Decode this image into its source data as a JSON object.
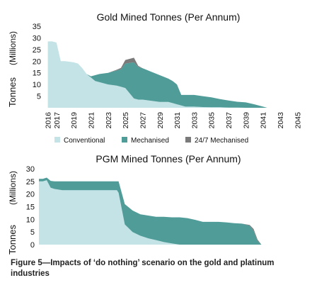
{
  "chart_data": [
    {
      "type": "area",
      "title": "Gold Mined Tonnes (Per Annum)",
      "ylabel": "Tonnes",
      "ylabel_unit": "(Millions)",
      "x": [
        2016,
        2016.5,
        2017,
        2017.5,
        2018,
        2019,
        2019.5,
        2020,
        2020.5,
        2021,
        2021.5,
        2022,
        2023,
        2024,
        2024.5,
        2025,
        2026,
        2026.5,
        2027,
        2028,
        2029,
        2030,
        2030.5,
        2031,
        2031.5,
        2032,
        2033,
        2034,
        2035,
        2036,
        2037,
        2038,
        2039,
        2040,
        2041,
        2041.5
      ],
      "ylim": [
        0,
        35
      ],
      "yticks": [
        5,
        10,
        15,
        20,
        25,
        30,
        35
      ],
      "xticks": [
        2016,
        2017,
        2019,
        2021,
        2023,
        2025,
        2027,
        2029,
        2031,
        2033,
        2035,
        2037,
        2039,
        2041,
        2043,
        2045
      ],
      "series": [
        {
          "name": "Conventional",
          "color": "#c3e3e6",
          "values": [
            28.5,
            28.5,
            28.0,
            20.0,
            20.0,
            19.5,
            19.0,
            17.0,
            14.5,
            13.0,
            11.5,
            11.0,
            10.0,
            9.5,
            9.0,
            8.5,
            4.0,
            3.5,
            3.5,
            3.0,
            2.5,
            2.5,
            2.0,
            1.5,
            1.0,
            0.5,
            0.5,
            0.3,
            0.2,
            0.2,
            0.1,
            0.1,
            0,
            0,
            0,
            0
          ]
        },
        {
          "name": "Mechanised",
          "color": "#4f9c98",
          "values": [
            0,
            0,
            0,
            0,
            0,
            0,
            0,
            0,
            0,
            0.5,
            2.5,
            3.5,
            5.0,
            6.5,
            7.5,
            10.5,
            15.5,
            14.0,
            13.5,
            12.5,
            11.5,
            10.0,
            9.5,
            8.5,
            4.5,
            5.0,
            5.0,
            4.7,
            4.3,
            3.5,
            3.0,
            2.5,
            2.3,
            1.5,
            0.5,
            0
          ]
        },
        {
          "name": "24/7 Mechanised",
          "color": "#7a7a7a",
          "values": [
            0,
            0,
            0,
            0,
            0,
            0,
            0,
            0,
            0,
            0,
            0,
            0,
            0,
            0.3,
            0.6,
            1.5,
            2.0,
            0.5,
            0,
            0,
            0,
            0,
            0,
            0,
            0,
            0,
            0,
            0,
            0,
            0,
            0,
            0,
            0,
            0,
            0,
            0
          ]
        }
      ]
    },
    {
      "type": "area",
      "title": "PGM Mined Tonnes (Per Annum)",
      "ylabel": "Tonnes",
      "ylabel_unit": "(Millions)",
      "x": [
        2016,
        2016.5,
        2017,
        2017.5,
        2018,
        2019,
        2020,
        2021,
        2022,
        2023,
        2024,
        2025,
        2026,
        2026.2,
        2027,
        2028,
        2029,
        2030,
        2031,
        2032,
        2033,
        2034,
        2035,
        2036,
        2037,
        2038,
        2039,
        2040,
        2041,
        2042,
        2043,
        2043.5,
        2044,
        2044.5
      ],
      "ylim": [
        0,
        30
      ],
      "yticks": [
        0,
        5,
        10,
        15,
        20,
        25,
        30
      ],
      "series": [
        {
          "name": "Conventional",
          "color": "#c3e3e6",
          "values": [
            25.0,
            25.0,
            25.5,
            22.5,
            22.0,
            21.5,
            21.5,
            21.5,
            21.5,
            21.5,
            21.5,
            21.5,
            21.5,
            20.5,
            8.0,
            5.0,
            3.5,
            2.5,
            1.8,
            1.0,
            0.5,
            0,
            0,
            0,
            0,
            0,
            0,
            0,
            0,
            0,
            0,
            0,
            0,
            0
          ]
        },
        {
          "name": "Mechanised",
          "color": "#4f9c98",
          "values": [
            1.0,
            1.0,
            1.0,
            2.7,
            3.0,
            3.5,
            3.5,
            3.5,
            3.5,
            3.5,
            3.5,
            3.5,
            3.5,
            4.5,
            8.0,
            8.5,
            8.5,
            9.0,
            9.2,
            10.0,
            10.3,
            10.8,
            10.5,
            9.8,
            9.0,
            9.0,
            9.0,
            8.8,
            8.5,
            8.3,
            7.5,
            5.5,
            1.5,
            0
          ]
        },
        {
          "name": "24/7 Mechanised",
          "color": "#7a7a7a",
          "values": [
            0,
            0,
            0,
            0,
            0,
            0,
            0,
            0,
            0,
            0,
            0,
            0,
            0,
            0,
            0,
            0,
            0,
            0,
            0,
            0,
            0,
            0,
            0,
            0,
            0,
            0,
            0,
            0,
            0,
            0,
            0.3,
            0.7,
            0.5,
            0
          ]
        }
      ]
    }
  ],
  "caption": "Figure 5—Impacts of ‘do nothing’ scenario on the gold and platinum industries"
}
